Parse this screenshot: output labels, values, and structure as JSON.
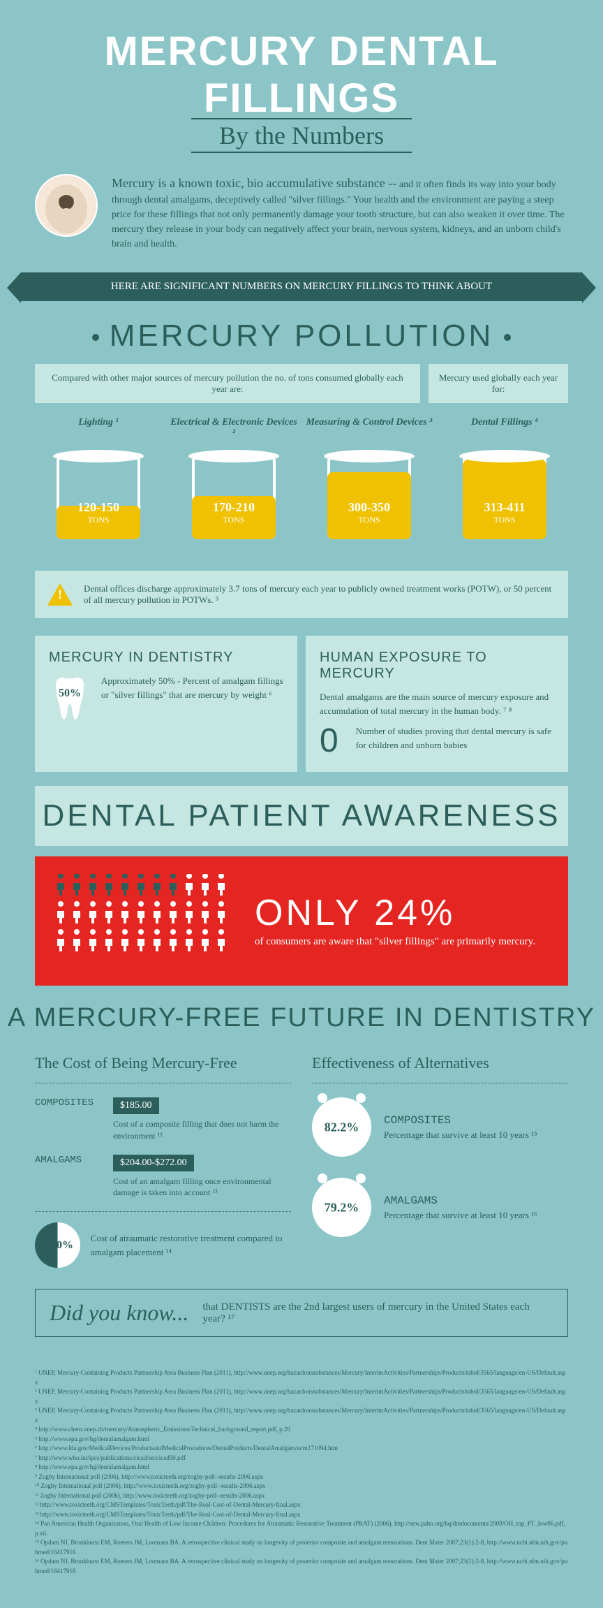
{
  "header": {
    "title": "MERCURY DENTAL FILLINGS",
    "subtitle": "By the Numbers"
  },
  "intro": {
    "lead": "Mercury is a known toxic, bio accumulative substance --",
    "body": "and it often finds its way into your body through dental amalgams, deceptively called \"silver fillings.\" Your health and the environment are paying a steep price for these fillings that not only permanently damage your tooth structure, but can also weaken it over time. The mercury they release in your body can negatively affect your brain, nervous system, kidneys, and an unborn child's brain and health."
  },
  "ribbon": "HERE ARE SIGNIFICANT NUMBERS ON MERCURY FILLINGS TO THINK ABOUT",
  "pollution": {
    "title": "MERCURY POLLUTION",
    "label_left": "Compared with other major sources of mercury pollution the no. of tons consumed globally each year are:",
    "label_right": "Mercury used globally each year for:",
    "barrels": [
      {
        "title": "Lighting ¹",
        "value": "120-150",
        "fill_pct": 40
      },
      {
        "title": "Electrical & Electronic Devices ²",
        "value": "170-210",
        "fill_pct": 52
      },
      {
        "title": "Measuring & Control Devices ³",
        "value": "300-350",
        "fill_pct": 80
      },
      {
        "title": "Dental Fillings ⁴",
        "value": "313-411",
        "fill_pct": 95
      }
    ],
    "barrel_fill_color": "#efc100",
    "alert": "Dental offices discharge approximately 3.7 tons of mercury each year to publicly owned treatment works (POTW), or 50 percent of all mercury pollution in POTWs. ⁵"
  },
  "dentistry": {
    "title": "MERCURY IN DENTISTRY",
    "pct": "50%",
    "text": "Approximately 50% - Percent of amalgam fillings or \"silver fillings\" that are mercury by weight ⁶"
  },
  "exposure": {
    "title": "HUMAN EXPOSURE TO MERCURY",
    "text1": "Dental amalgams are the main source of mercury exposure and accumulation of total mercury in the human body. ⁷ ⁸",
    "zero": "0",
    "text2": "Number of studies proving that dental mercury is safe for children and unborn babies"
  },
  "awareness": {
    "title": "DENTAL PATIENT AWARENESS",
    "pct": "ONLY 24%",
    "text": "of consumers are aware that \"silver fillings\" are primarily mercury.",
    "dark_count": 8,
    "total": 33,
    "bg_color": "#e52521"
  },
  "future": {
    "title": "A MERCURY-FREE FUTURE IN DENTISTRY",
    "cost": {
      "title": "The Cost of Being Mercury-Free",
      "rows": [
        {
          "label": "COMPOSITES",
          "price": "$185.00",
          "desc": "Cost of a composite filling that does not harm the environment ¹²"
        },
        {
          "label": "AMALGAMS",
          "price": "$204.00-$272.00",
          "desc": "Cost of an amalgam filling once environmental damage is taken into account ¹³"
        }
      ],
      "pie_pct": "50%",
      "pie_desc": "Cost of atraumatic restorative treatment compared to amalgam placement ¹⁴"
    },
    "eff": {
      "title": "Effectiveness of Alternatives",
      "rows": [
        {
          "pct": "82.2%",
          "label": "COMPOSITES",
          "desc": "Percentage that survive at least 10 years ¹⁵"
        },
        {
          "pct": "79.2%",
          "label": "AMALGAMS",
          "desc": "Percentage that survive at least 10 years ¹⁶"
        }
      ]
    }
  },
  "dyk": {
    "label": "Did you know...",
    "text": "that DENTISTS are the 2nd largest users of mercury in the United States each year? ¹⁷"
  },
  "refs": [
    "¹ UNEP, Mercury-Containing Products Partnership Area Business Plan (2011), http://www.unep.org/hazardoussubstances/Mercury/InterimActivities/Partnerships/Products/tabid/3565/language/en-US/Default.aspx",
    "² UNEP, Mercury-Containing Products Partnership Area Business Plan (2011), http://www.unep.org/hazardoussubstances/Mercury/InterimActivities/Partnerships/Products/tabid/3565/language/en-US/Default.aspx",
    "³ UNEP, Mercury-Containing Products Partnership Area Business Plan (2011), http://www.unep.org/hazardoussubstances/Mercury/InterimActivities/Partnerships/Products/tabid/3565/language/en-US/Default.aspx",
    "⁴ http://www.chem.unep.ch/mercury/Atmospheric_Emissions/Technical_background_report.pdf, p.20",
    "⁵ http://www.epa.gov/hg/dentalamalgam.html",
    "⁶ http://www.fda.gov/MedicalDevices/ProductsandMedicalProcedures/DentalProducts/DentalAmalgam/ucm171094.htm",
    "⁷ http://www.who.int/ipcs/publications/cicad/en/cicad50.pdf",
    "⁸ http://www.epa.gov/hg/dentalamalgam.html",
    "⁹ Zogby International poll (2006), http://www.toxicteeth.org/zogby-poll--results-2006.aspx",
    "¹⁰ Zogby International poll (2006), http://www.toxicteeth.org/zogby-poll--results-2006.aspx",
    "¹¹ Zogby International poll (2006), http://www.toxicteeth.org/zogby-poll--results-2006.aspx",
    "¹² http://www.toxicteeth.org/CMSTemplates/ToxicTeeth/pdf/The-Real-Cost-of-Dental-Mercury-final.aspx",
    "¹³ http://www.toxicteeth.org/CMSTemplates/ToxicTeeth/pdf/The-Real-Cost-of-Dental-Mercury-final.aspx",
    "¹⁴ Pan American Health Organization, Oral Health of Low Income Children: Procedures for Atraumatic Restorative Treatment (PRAT) (2006), http://new.paho.org/hq/dmdocuments/2009/OH_top_PT_low06.pdf, p.xii.",
    "¹⁵ Opdam NJ, Bronkhurst EM, Roeters JM, Loomans BA. A retrospective clinical study on longevity of posterior composite and amalgam restorations. Dent Mater 2007;23(1):2-8, http://www.ncbi.nlm.nih.gov/pubmed/16417916",
    "¹⁶ Opdam NJ, Bronkhurst EM, Roeters JM, Loomans BA. A retrospective clinical study on longevity of posterior composite and amalgam restorations. Dent Mater 2007;23(1):2-8, http://www.ncbi.nlm.nih.gov/pubmed/16417916"
  ],
  "colors": {
    "bg": "#8bc5c8",
    "dark": "#2c5f5c",
    "light": "#c5e6e1",
    "yellow": "#efc100",
    "red": "#e52521"
  }
}
